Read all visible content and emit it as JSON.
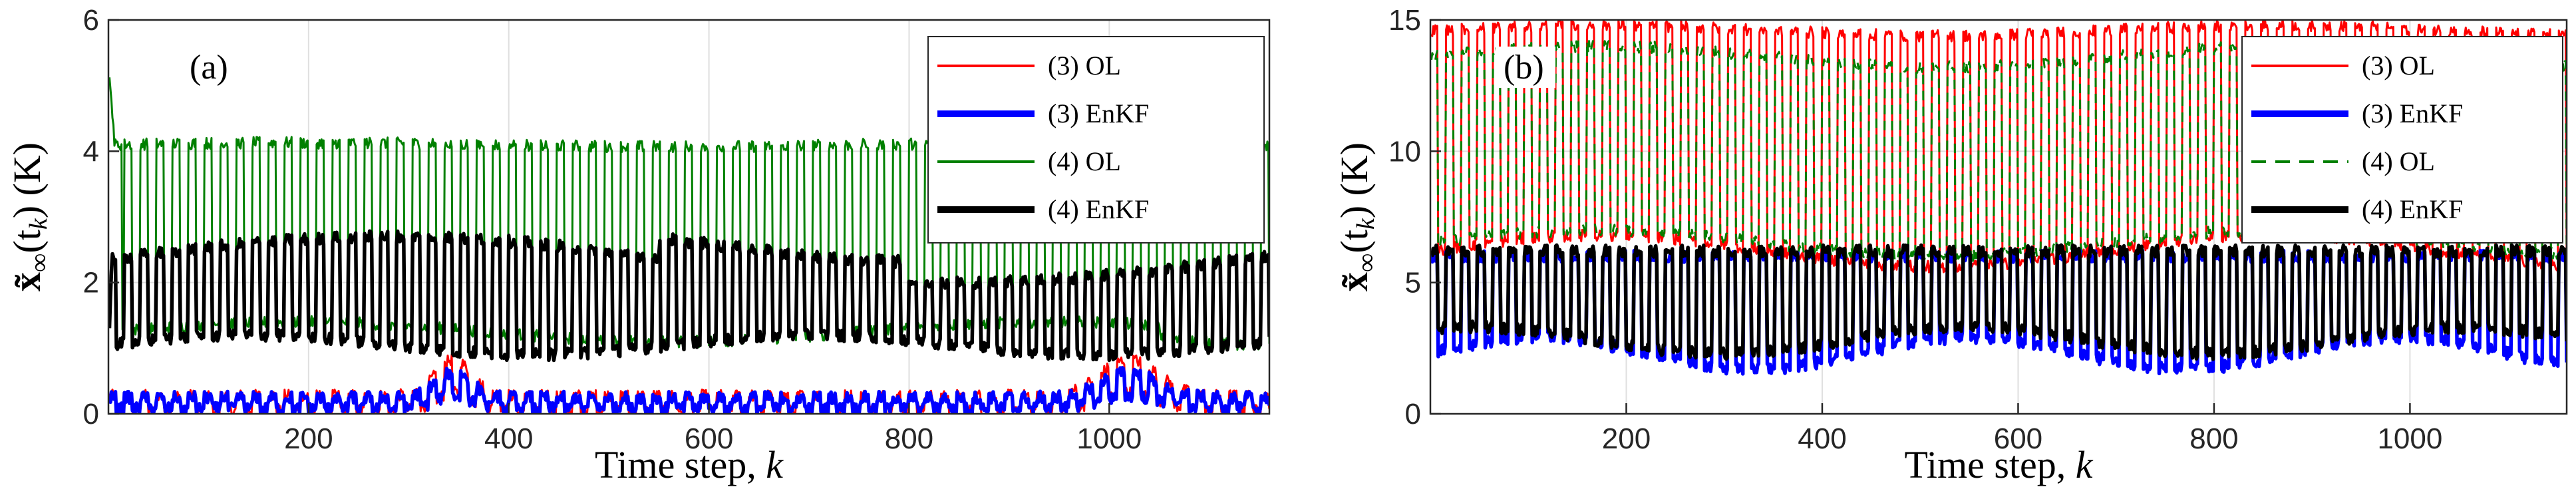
{
  "chart_data": [
    {
      "type": "line",
      "panel_label": "(a)",
      "xlabel": "Time step, k",
      "xlabel_main": "Time step, ",
      "xlabel_var": "k",
      "ylabel": "x̃∞(tk) (K)",
      "ylabel_main": "x̃",
      "ylabel_sub": "∞",
      "ylabel_arg_open": "(t",
      "ylabel_arg_sub": "k",
      "ylabel_arg_close": ")",
      "ylabel_unit": " (K)",
      "xlim": [
        0,
        1160
      ],
      "ylim": [
        0,
        6
      ],
      "xticks": [
        200,
        400,
        600,
        800,
        1000
      ],
      "yticks": [
        0,
        2,
        4,
        6
      ],
      "grid": true,
      "legend_position": "top-right",
      "series": [
        {
          "name": "(3) OL",
          "color": "#ff0000",
          "style": "solid",
          "weight": "thin",
          "description": "small oscillation near 0, bumps near k=340 and k=1020",
          "approx_low": 0.0,
          "approx_high": 0.3
        },
        {
          "name": "(3) EnKF",
          "color": "#0000ff",
          "style": "solid",
          "weight": "thick",
          "description": "small oscillation near 0",
          "approx_low": 0.05,
          "approx_high": 0.3
        },
        {
          "name": "(4) OL",
          "color": "#008000",
          "style": "solid",
          "weight": "thin",
          "description": "square-wave oscillation about every 16 steps",
          "approx_low": 1.2,
          "approx_high": 4.1,
          "initial_peak": 5.2
        },
        {
          "name": "(4) EnKF",
          "color": "#000000",
          "style": "solid",
          "weight": "thick",
          "description": "dense oscillation band",
          "approx_low": 1.0,
          "approx_high": 2.5
        }
      ]
    },
    {
      "type": "line",
      "panel_label": "(b)",
      "xlabel": "Time step, k",
      "xlabel_main": "Time step, ",
      "xlabel_var": "k",
      "ylabel": "x̃∞(tk) (K)",
      "ylabel_main": "x̃",
      "ylabel_sub": "∞",
      "ylabel_arg_open": "(t",
      "ylabel_arg_sub": "k",
      "ylabel_arg_close": ")",
      "ylabel_unit": " (K)",
      "xlim": [
        0,
        1160
      ],
      "ylim": [
        0,
        15
      ],
      "xticks": [
        200,
        400,
        600,
        800,
        1000
      ],
      "yticks": [
        0,
        5,
        10,
        15
      ],
      "grid": true,
      "legend_position": "top-right",
      "series": [
        {
          "name": "(3) OL",
          "color": "#ff0000",
          "style": "solid",
          "weight": "thin",
          "description": "large oscillation",
          "approx_low": 6.0,
          "approx_high": 14.8
        },
        {
          "name": "(3) EnKF",
          "color": "#0000ff",
          "style": "solid",
          "weight": "thick",
          "description": "oscillation band",
          "approx_low": 2.0,
          "approx_high": 6.0
        },
        {
          "name": "(4) OL",
          "color": "#008000",
          "style": "dashed",
          "weight": "thin",
          "description": "large oscillation",
          "approx_low": 6.0,
          "approx_high": 14.0
        },
        {
          "name": "(4) EnKF",
          "color": "#000000",
          "style": "solid",
          "weight": "thick",
          "description": "oscillation band",
          "approx_low": 2.5,
          "approx_high": 6.2
        }
      ]
    }
  ]
}
